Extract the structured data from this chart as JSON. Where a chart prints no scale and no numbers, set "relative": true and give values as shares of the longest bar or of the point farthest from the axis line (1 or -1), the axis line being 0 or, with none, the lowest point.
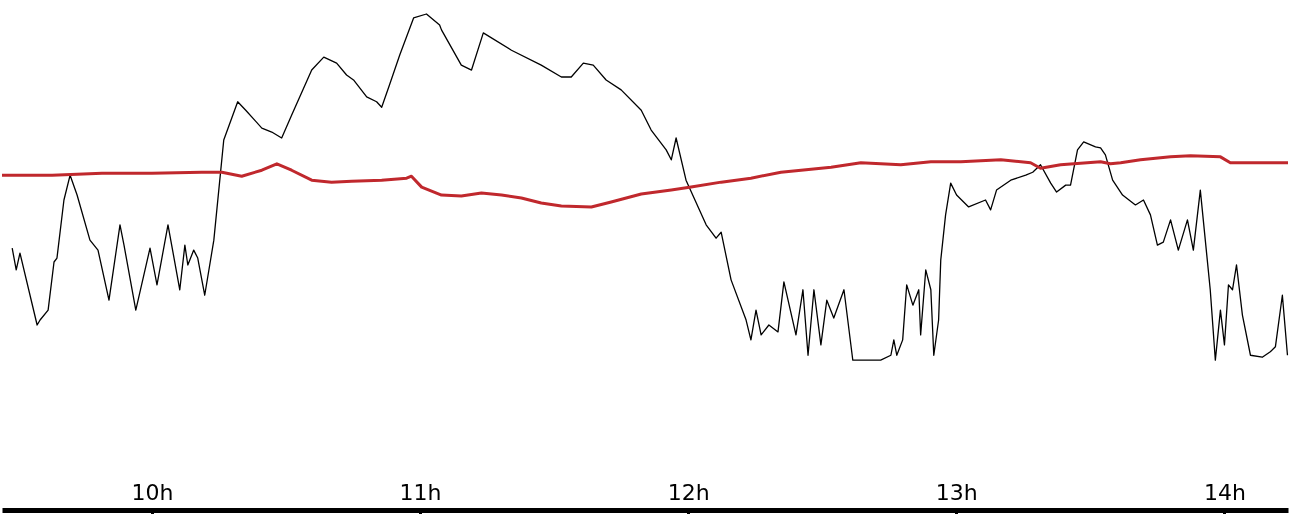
{
  "chart_data": {
    "type": "line",
    "relative": true,
    "line_style": "solid",
    "xlim": [
      9.441,
      14.237
    ],
    "xticks": [
      {
        "value": 10,
        "label": "10h"
      },
      {
        "value": 11,
        "label": "11h"
      },
      {
        "value": 12,
        "label": "12h"
      },
      {
        "value": 13,
        "label": "13h"
      },
      {
        "value": 14,
        "label": "14h"
      }
    ],
    "series": [
      {
        "color": "#000000",
        "x": [
          9.479,
          9.494,
          9.508,
          9.572,
          9.583,
          9.613,
          9.635,
          9.646,
          9.672,
          9.695,
          9.721,
          9.769,
          9.799,
          9.84,
          9.881,
          9.896,
          9.94,
          9.993,
          10.019,
          10.06,
          10.104,
          10.123,
          10.134,
          10.156,
          10.171,
          10.197,
          10.231,
          10.268,
          10.32,
          10.35,
          10.41,
          10.447,
          10.484,
          10.521,
          10.596,
          10.641,
          10.689,
          10.726,
          10.752,
          10.801,
          10.838,
          10.857,
          10.886,
          10.924,
          10.976,
          11.024,
          11.073,
          11.08,
          11.154,
          11.192,
          11.236,
          11.341,
          11.452,
          11.527,
          11.564,
          11.609,
          11.646,
          11.694,
          11.75,
          11.825,
          11.862,
          11.918,
          11.937,
          11.955,
          11.992,
          12.067,
          12.104,
          12.123,
          12.16,
          12.216,
          12.234,
          12.253,
          12.272,
          12.301,
          12.335,
          12.357,
          12.402,
          12.428,
          12.447,
          12.469,
          12.495,
          12.517,
          12.543,
          12.581,
          12.614,
          12.681,
          12.718,
          12.756,
          12.767,
          12.778,
          12.8,
          12.815,
          12.838,
          12.86,
          12.867,
          12.886,
          12.905,
          12.916,
          12.934,
          12.942,
          12.96,
          12.979,
          13.001,
          13.046,
          13.109,
          13.128,
          13.15,
          13.203,
          13.259,
          13.285,
          13.314,
          13.352,
          13.374,
          13.408,
          13.426,
          13.452,
          13.475,
          13.519,
          13.538,
          13.556,
          13.583,
          13.62,
          13.668,
          13.698,
          13.724,
          13.75,
          13.772,
          13.799,
          13.828,
          13.862,
          13.884,
          13.91,
          13.947,
          13.966,
          13.985,
          14.0,
          14.015,
          14.03,
          14.045,
          14.067,
          14.097,
          14.141,
          14.171,
          14.19,
          14.216,
          14.235
        ],
        "values": [
          0.528,
          0.484,
          0.518,
          0.373,
          0.383,
          0.403,
          0.5,
          0.508,
          0.625,
          0.675,
          0.635,
          0.544,
          0.524,
          0.423,
          0.575,
          0.534,
          0.403,
          0.528,
          0.454,
          0.575,
          0.444,
          0.534,
          0.494,
          0.524,
          0.508,
          0.433,
          0.544,
          0.746,
          0.823,
          0.806,
          0.77,
          0.762,
          0.75,
          0.796,
          0.887,
          0.913,
          0.901,
          0.877,
          0.867,
          0.833,
          0.823,
          0.812,
          0.857,
          0.917,
          0.992,
          1,
          0.978,
          0.968,
          0.897,
          0.887,
          0.962,
          0.927,
          0.897,
          0.873,
          0.873,
          0.901,
          0.897,
          0.867,
          0.847,
          0.806,
          0.766,
          0.726,
          0.706,
          0.75,
          0.665,
          0.575,
          0.548,
          0.56,
          0.464,
          0.383,
          0.343,
          0.403,
          0.353,
          0.373,
          0.359,
          0.46,
          0.353,
          0.444,
          0.312,
          0.444,
          0.333,
          0.423,
          0.387,
          0.444,
          0.302,
          0.302,
          0.302,
          0.312,
          0.343,
          0.312,
          0.343,
          0.454,
          0.413,
          0.444,
          0.353,
          0.484,
          0.444,
          0.312,
          0.383,
          0.504,
          0.595,
          0.659,
          0.635,
          0.611,
          0.625,
          0.605,
          0.645,
          0.665,
          0.675,
          0.681,
          0.696,
          0.659,
          0.641,
          0.655,
          0.655,
          0.726,
          0.742,
          0.732,
          0.73,
          0.716,
          0.665,
          0.635,
          0.615,
          0.625,
          0.595,
          0.534,
          0.54,
          0.585,
          0.524,
          0.585,
          0.524,
          0.645,
          0.444,
          0.302,
          0.403,
          0.333,
          0.454,
          0.444,
          0.494,
          0.393,
          0.312,
          0.308,
          0.319,
          0.329,
          0.433,
          0.312
        ]
      },
      {
        "color": "#c0282d",
        "x": [
          9.441,
          9.628,
          9.814,
          10.0,
          10.186,
          10.261,
          10.335,
          10.41,
          10.466,
          10.521,
          10.596,
          10.67,
          10.745,
          10.857,
          10.95,
          10.968,
          11.006,
          11.08,
          11.154,
          11.229,
          11.304,
          11.378,
          11.452,
          11.527,
          11.639,
          11.713,
          11.825,
          11.937,
          12.011,
          12.123,
          12.234,
          12.346,
          12.421,
          12.533,
          12.644,
          12.793,
          12.905,
          13.017,
          13.166,
          13.277,
          13.314,
          13.389,
          13.538,
          13.575,
          13.613,
          13.687,
          13.799,
          13.873,
          13.985,
          14.022,
          14.134,
          14.237
        ],
        "values": [
          0.675,
          0.675,
          0.679,
          0.679,
          0.681,
          0.681,
          0.673,
          0.685,
          0.698,
          0.685,
          0.665,
          0.661,
          0.663,
          0.665,
          0.669,
          0.673,
          0.651,
          0.635,
          0.633,
          0.639,
          0.635,
          0.629,
          0.619,
          0.613,
          0.611,
          0.621,
          0.637,
          0.645,
          0.651,
          0.661,
          0.669,
          0.681,
          0.685,
          0.691,
          0.7,
          0.696,
          0.702,
          0.702,
          0.706,
          0.7,
          0.689,
          0.696,
          0.702,
          0.698,
          0.7,
          0.706,
          0.712,
          0.714,
          0.712,
          0.7,
          0.7,
          0.7
        ]
      }
    ]
  }
}
